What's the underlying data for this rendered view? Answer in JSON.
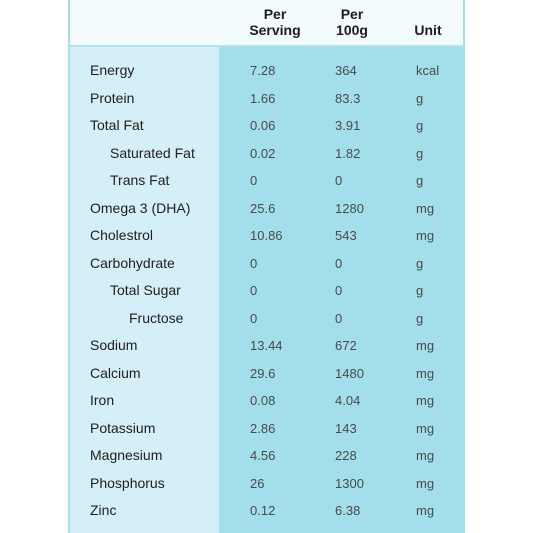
{
  "header": {
    "serving_line1": "Per",
    "serving_line2": "Serving",
    "per100_line1": "Per",
    "per100_line2": "100g",
    "unit": "Unit"
  },
  "rows": [
    {
      "label": "Energy",
      "serving": "7.28",
      "per100": "364",
      "unit": "kcal",
      "indent": 0
    },
    {
      "label": "Protein",
      "serving": "1.66",
      "per100": "83.3",
      "unit": "g",
      "indent": 0
    },
    {
      "label": "Total Fat",
      "serving": "0.06",
      "per100": "3.91",
      "unit": "g",
      "indent": 0
    },
    {
      "label": "Saturated Fat",
      "serving": "0.02",
      "per100": "1.82",
      "unit": "g",
      "indent": 1
    },
    {
      "label": "Trans Fat",
      "serving": "0",
      "per100": "0",
      "unit": "g",
      "indent": 1
    },
    {
      "label": "Omega 3 (DHA)",
      "serving": "25.6",
      "per100": "1280",
      "unit": "mg",
      "indent": 0
    },
    {
      "label": "Cholestrol",
      "serving": "10.86",
      "per100": "543",
      "unit": "mg",
      "indent": 0
    },
    {
      "label": "Carbohydrate",
      "serving": "0",
      "per100": "0",
      "unit": "g",
      "indent": 0
    },
    {
      "label": "Total Sugar",
      "serving": "0",
      "per100": "0",
      "unit": "g",
      "indent": 1
    },
    {
      "label": "Fructose",
      "serving": "0",
      "per100": "0",
      "unit": "g",
      "indent": 2
    },
    {
      "label": "Sodium",
      "serving": "13.44",
      "per100": "672",
      "unit": "mg",
      "indent": 0
    },
    {
      "label": "Calcium",
      "serving": "29.6",
      "per100": "1480",
      "unit": "mg",
      "indent": 0
    },
    {
      "label": "Iron",
      "serving": "0.08",
      "per100": "4.04",
      "unit": "mg",
      "indent": 0
    },
    {
      "label": "Potassium",
      "serving": "2.86",
      "per100": "143",
      "unit": "mg",
      "indent": 0
    },
    {
      "label": "Magnesium",
      "serving": "4.56",
      "per100": "228",
      "unit": "mg",
      "indent": 0
    },
    {
      "label": "Phosphorus",
      "serving": "26",
      "per100": "1300",
      "unit": "mg",
      "indent": 0
    },
    {
      "label": "Zinc",
      "serving": "0.12",
      "per100": "6.38",
      "unit": "mg",
      "indent": 0
    }
  ]
}
